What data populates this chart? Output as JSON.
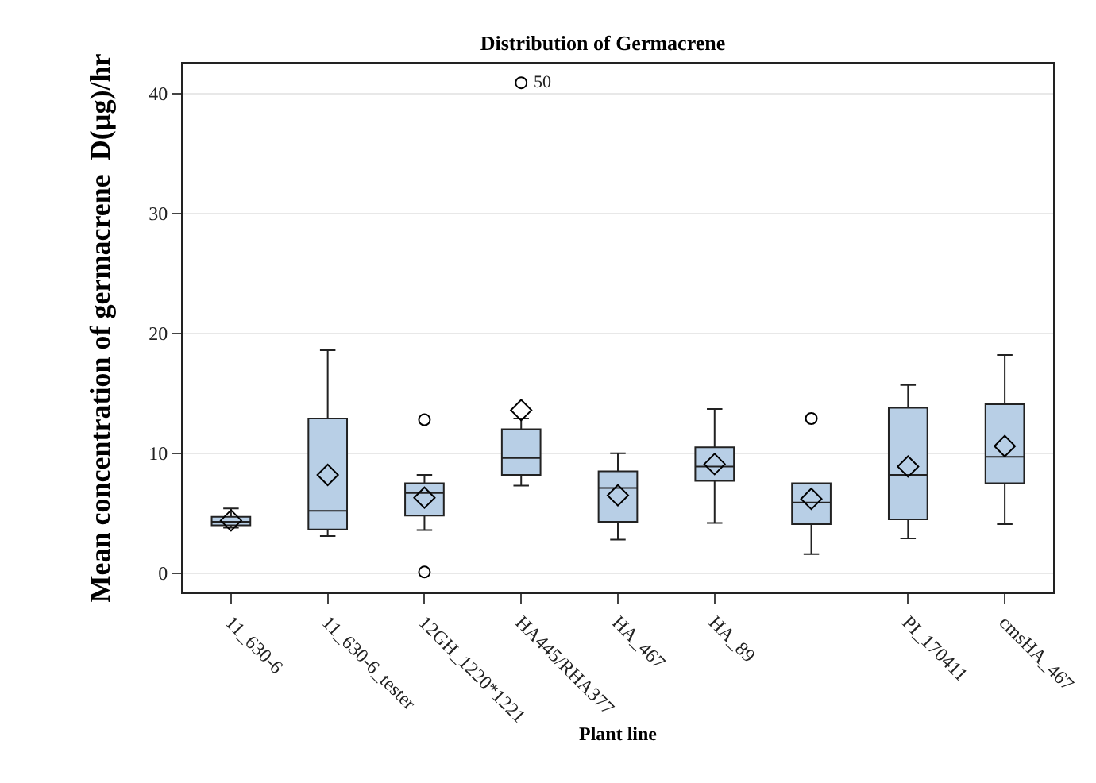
{
  "chart_data": {
    "type": "box",
    "title": "Distribution of Germacrene",
    "xlabel": "Plant line",
    "ylabel": "Mean concentration of germacrene  D(µg)/hr",
    "categories": [
      "11_630-6",
      "11_630-6_tester",
      "12GH_1220*1221",
      "HA445/RHA377",
      "HA_467",
      "HA_89",
      null,
      "PI_170411",
      "cmsHA_467"
    ],
    "color": "#b8cfe6",
    "boxes": [
      {
        "low": 3.8,
        "q1": 4.0,
        "median": 4.3,
        "q3": 4.7,
        "high": 5.4,
        "mean": 4.4
      },
      {
        "low": 3.1,
        "q1": 3.65,
        "median": 5.2,
        "q3": 12.9,
        "high": 18.6,
        "mean": 8.2
      },
      {
        "low": 3.6,
        "q1": 4.8,
        "median": 6.7,
        "q3": 7.5,
        "high": 8.2,
        "mean": 6.3,
        "outliers": [
          12.8,
          0.1
        ]
      },
      {
        "low": 7.3,
        "q1": 8.2,
        "median": 9.6,
        "q3": 12.0,
        "high": 12.9,
        "mean": 13.6,
        "outliers": [
          40.9
        ]
      },
      {
        "low": 2.8,
        "q1": 4.3,
        "median": 7.1,
        "q3": 8.5,
        "high": 10.0,
        "mean": 6.5
      },
      {
        "low": 4.2,
        "q1": 7.7,
        "median": 8.9,
        "q3": 10.5,
        "high": 13.7,
        "mean": 9.1
      },
      {
        "low": 1.6,
        "q1": 4.1,
        "median": 5.9,
        "q3": 7.5,
        "high": 7.5,
        "mean": 6.2,
        "outliers": [
          12.9
        ]
      },
      {
        "low": 2.9,
        "q1": 4.5,
        "median": 8.2,
        "q3": 13.8,
        "high": 15.7,
        "mean": 8.9
      },
      {
        "low": 4.1,
        "q1": 7.5,
        "median": 9.7,
        "q3": 14.1,
        "high": 18.2,
        "mean": 10.6
      }
    ],
    "annotations": [
      "50"
    ],
    "ylim": [
      -1.6,
      42.5
    ],
    "yticks": [
      0,
      10,
      20,
      30,
      40
    ],
    "grid": "y"
  }
}
